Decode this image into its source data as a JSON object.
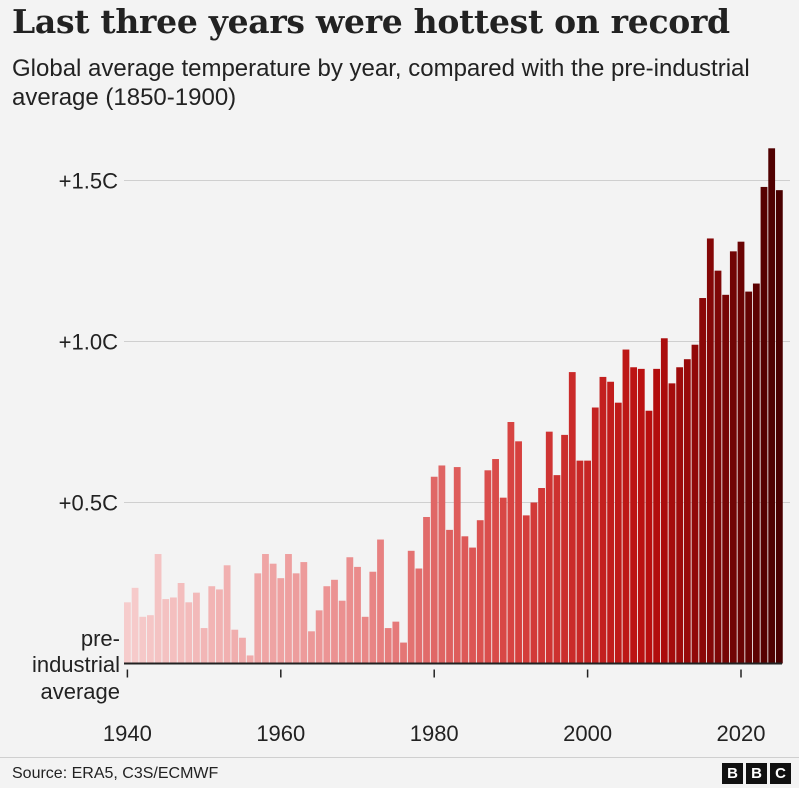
{
  "chart_data": {
    "type": "bar",
    "title": "Last three years were hottest on record",
    "subtitle": "Global average temperature by year, compared with the pre-industrial average (1850-1900)",
    "xlabel": "",
    "ylabel": "",
    "baseline_label": [
      "pre-",
      "industrial",
      "average"
    ],
    "y_ticks": [
      {
        "value": 0.5,
        "label": "+0.5C"
      },
      {
        "value": 1.0,
        "label": "+1.0C"
      },
      {
        "value": 1.5,
        "label": "+1.5C"
      }
    ],
    "x_ticks": [
      1940,
      1960,
      1980,
      2000,
      2020
    ],
    "ylim": [
      0,
      1.62
    ],
    "grid": true,
    "years": [
      1940,
      1941,
      1942,
      1943,
      1944,
      1945,
      1946,
      1947,
      1948,
      1949,
      1950,
      1951,
      1952,
      1953,
      1954,
      1955,
      1956,
      1957,
      1958,
      1959,
      1960,
      1961,
      1962,
      1963,
      1964,
      1965,
      1966,
      1967,
      1968,
      1969,
      1970,
      1971,
      1972,
      1973,
      1974,
      1975,
      1976,
      1977,
      1978,
      1979,
      1980,
      1981,
      1982,
      1983,
      1984,
      1985,
      1986,
      1987,
      1988,
      1989,
      1990,
      1991,
      1992,
      1993,
      1994,
      1995,
      1996,
      1997,
      1998,
      1999,
      2000,
      2001,
      2002,
      2003,
      2004,
      2005,
      2006,
      2007,
      2008,
      2009,
      2010,
      2011,
      2012,
      2013,
      2014,
      2015,
      2016,
      2017,
      2018,
      2019,
      2020,
      2021,
      2022,
      2023,
      2024,
      2025
    ],
    "values": [
      0.19,
      0.235,
      0.145,
      0.15,
      0.34,
      0.2,
      0.205,
      0.25,
      0.19,
      0.22,
      0.11,
      0.24,
      0.23,
      0.305,
      0.105,
      0.08,
      0.025,
      0.28,
      0.34,
      0.31,
      0.265,
      0.34,
      0.28,
      0.315,
      0.1,
      0.165,
      0.24,
      0.26,
      0.195,
      0.33,
      0.3,
      0.145,
      0.285,
      0.385,
      0.11,
      0.13,
      0.065,
      0.35,
      0.295,
      0.455,
      0.58,
      0.615,
      0.415,
      0.61,
      0.395,
      0.36,
      0.445,
      0.6,
      0.635,
      0.515,
      0.75,
      0.69,
      0.46,
      0.5,
      0.545,
      0.72,
      0.585,
      0.71,
      0.905,
      0.63,
      0.63,
      0.795,
      0.89,
      0.875,
      0.81,
      0.975,
      0.92,
      0.915,
      0.785,
      0.915,
      1.01,
      0.87,
      0.92,
      0.945,
      0.99,
      1.135,
      1.32,
      1.22,
      1.145,
      1.28,
      1.31,
      1.155,
      1.18,
      1.48,
      1.6,
      1.47
    ]
  },
  "footer": {
    "source": "Source: ERA5, C3S/ECMWF",
    "logo": [
      "B",
      "B",
      "C"
    ]
  }
}
